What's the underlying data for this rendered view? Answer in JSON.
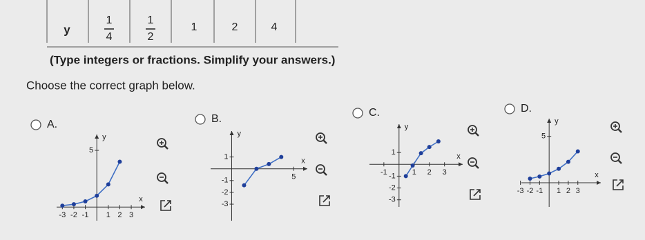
{
  "table": {
    "header": "y",
    "cells": [
      {
        "num": "1",
        "den": "4"
      },
      {
        "num": "1",
        "den": "2"
      },
      "1",
      "2",
      "4"
    ]
  },
  "instruction": "(Type integers or fractions. Simplify your answers.)",
  "prompt": "Choose the correct graph below.",
  "options": [
    {
      "label": "A.",
      "graph": {
        "x_label": "x",
        "y_label": "y",
        "xlim": [
          -3.5,
          4.2
        ],
        "ylim": [
          -1.2,
          6.4
        ],
        "xticks": [
          -3,
          -2,
          -1,
          1,
          2,
          3
        ],
        "yticks": [
          5
        ],
        "points": {
          "x": [
            -3,
            -2,
            -1,
            0,
            1,
            2
          ],
          "y": [
            0.125,
            0.25,
            0.5,
            1,
            2,
            4
          ]
        }
      }
    },
    {
      "label": "B.",
      "graph": {
        "x_label": "x",
        "y_label": "y",
        "xlim": [
          -1.7,
          6.1
        ],
        "ylim": [
          -4.4,
          3.2
        ],
        "xticks": [
          5
        ],
        "yticks": [
          1,
          -1,
          -2,
          -3
        ],
        "points": {
          "x": [
            1,
            2,
            3,
            4
          ],
          "y": [
            -1.4,
            0,
            0.4,
            1
          ]
        }
      }
    },
    {
      "label": "C.",
      "graph": {
        "x_label": "x",
        "y_label": "y",
        "xlim": [
          -1.95,
          4.2
        ],
        "ylim": [
          -3.6,
          3.4
        ],
        "xticks": [
          -1,
          1,
          2,
          3
        ],
        "yticks": [
          1,
          -1,
          -2,
          -3
        ],
        "points": {
          "x": [
            0.45,
            0.9,
            1.45,
            2,
            2.6
          ],
          "y": [
            -1,
            -0.1,
            0.94,
            1.47,
            1.94
          ]
        }
      }
    },
    {
      "label": "D.",
      "graph": {
        "x_label": "x",
        "y_label": "y",
        "xlim": [
          -2.9,
          5.4
        ],
        "ylim": [
          -2.6,
          6.9
        ],
        "xticks": [
          -3,
          -2,
          -1,
          1,
          2,
          3
        ],
        "yticks": [
          5
        ],
        "points": {
          "x": [
            -2,
            -1,
            0,
            1,
            2,
            3
          ],
          "y": [
            0.44,
            0.67,
            1,
            1.5,
            2.25,
            3.375
          ]
        }
      }
    }
  ]
}
